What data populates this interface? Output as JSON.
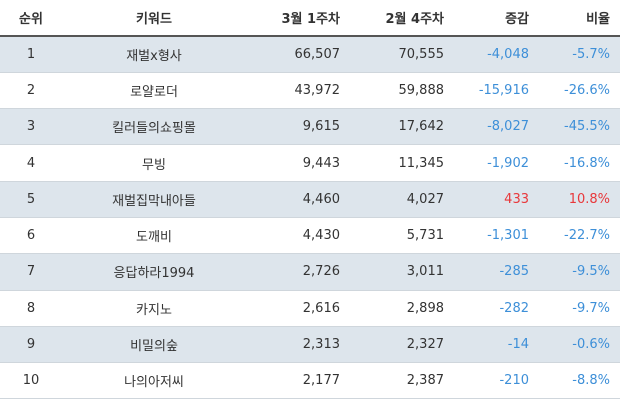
{
  "headers": {
    "rank": "순위",
    "keyword": "키워드",
    "week_current": "3월 1주차",
    "week_prev": "2월 4주차",
    "change": "증감",
    "ratio": "비율"
  },
  "colors": {
    "negative": "#3d8fd8",
    "positive": "#e8383b",
    "row_alt": "#dde5ec"
  },
  "rows": [
    {
      "rank": "1",
      "keyword": "재벌x형사",
      "current": "66,507",
      "prev": "70,555",
      "change": "-4,048",
      "ratio": "-5.7%",
      "trend": "neg"
    },
    {
      "rank": "2",
      "keyword": "로얄로더",
      "current": "43,972",
      "prev": "59,888",
      "change": "-15,916",
      "ratio": "-26.6%",
      "trend": "neg"
    },
    {
      "rank": "3",
      "keyword": "킬러들의쇼핑몰",
      "current": "9,615",
      "prev": "17,642",
      "change": "-8,027",
      "ratio": "-45.5%",
      "trend": "neg"
    },
    {
      "rank": "4",
      "keyword": "무빙",
      "current": "9,443",
      "prev": "11,345",
      "change": "-1,902",
      "ratio": "-16.8%",
      "trend": "neg"
    },
    {
      "rank": "5",
      "keyword": "재벌집막내아들",
      "current": "4,460",
      "prev": "4,027",
      "change": "433",
      "ratio": "10.8%",
      "trend": "pos"
    },
    {
      "rank": "6",
      "keyword": "도깨비",
      "current": "4,430",
      "prev": "5,731",
      "change": "-1,301",
      "ratio": "-22.7%",
      "trend": "neg"
    },
    {
      "rank": "7",
      "keyword": "응답하라1994",
      "current": "2,726",
      "prev": "3,011",
      "change": "-285",
      "ratio": "-9.5%",
      "trend": "neg"
    },
    {
      "rank": "8",
      "keyword": "카지노",
      "current": "2,616",
      "prev": "2,898",
      "change": "-282",
      "ratio": "-9.7%",
      "trend": "neg"
    },
    {
      "rank": "9",
      "keyword": "비밀의숲",
      "current": "2,313",
      "prev": "2,327",
      "change": "-14",
      "ratio": "-0.6%",
      "trend": "neg"
    },
    {
      "rank": "10",
      "keyword": "나의아저씨",
      "current": "2,177",
      "prev": "2,387",
      "change": "-210",
      "ratio": "-8.8%",
      "trend": "neg"
    }
  ]
}
